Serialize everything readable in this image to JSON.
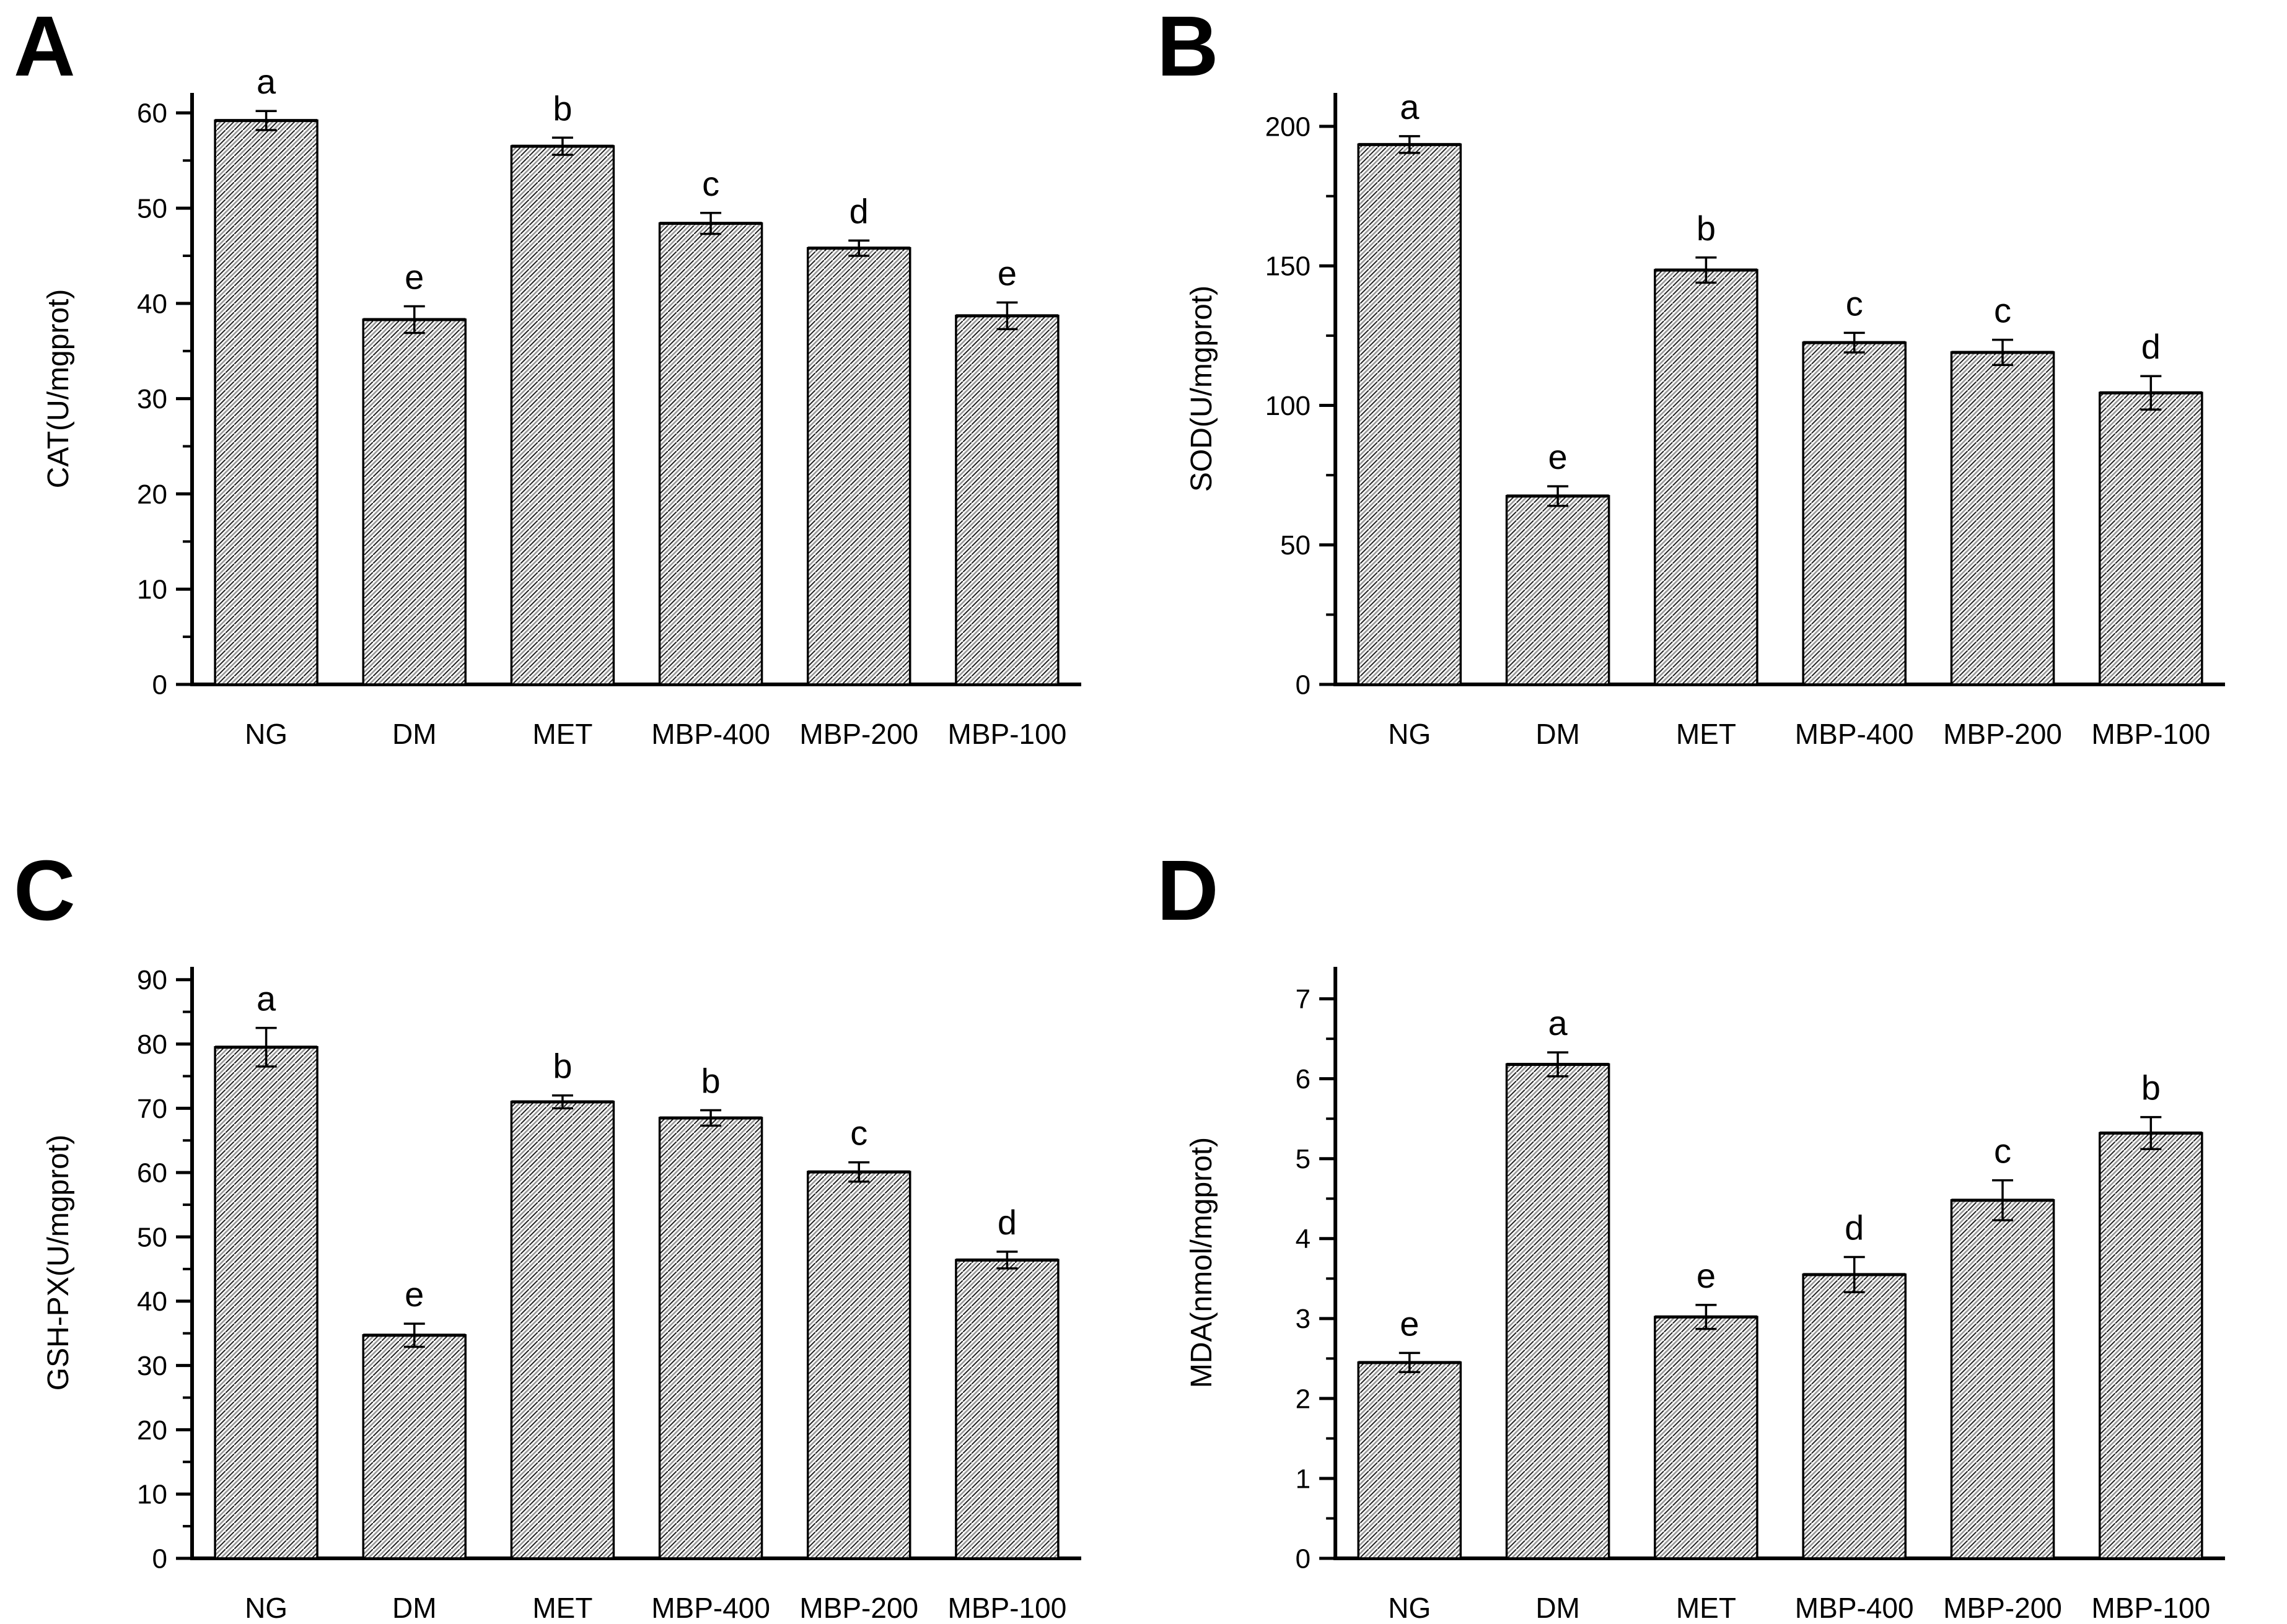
{
  "figure": {
    "background_color": "#ffffff",
    "axis_color": "#000000",
    "hatch_dark_color": "#1f1f1f",
    "hatch_light_color": "#9a9a9a",
    "bar_fill_background": "#ffffff",
    "groups": [
      "NG",
      "DM",
      "MET",
      "MBP-400",
      "MBP-200",
      "MBP-100"
    ]
  },
  "chart_data": [
    {
      "type": "bar",
      "panel_letter": "A",
      "title": "",
      "xlabel": "",
      "ylabel": "CAT(U/mgprot)",
      "categories": [
        "NG",
        "DM",
        "MET",
        "MBP-400",
        "MBP-200",
        "MBP-100"
      ],
      "values": [
        59.2,
        38.3,
        56.5,
        48.4,
        45.8,
        38.7
      ],
      "errors": [
        1.0,
        1.4,
        0.9,
        1.1,
        0.8,
        1.4
      ],
      "sig_labels": [
        "a",
        "e",
        "b",
        "c",
        "d",
        "e"
      ],
      "ylim": [
        0,
        62.1
      ],
      "ytick_major": 10,
      "ytick_minor": 5,
      "grid": "off",
      "legend": "none"
    },
    {
      "type": "bar",
      "panel_letter": "B",
      "title": "",
      "xlabel": "",
      "ylabel": "SOD(U/mgprot)",
      "categories": [
        "NG",
        "DM",
        "MET",
        "MBP-400",
        "MBP-200",
        "MBP-100"
      ],
      "values": [
        193.5,
        67.5,
        148.5,
        122.5,
        119.0,
        104.5
      ],
      "errors": [
        3.0,
        3.5,
        4.5,
        3.5,
        4.5,
        6.0
      ],
      "sig_labels": [
        "a",
        "e",
        "b",
        "c",
        "c",
        "d"
      ],
      "ylim": [
        0,
        212
      ],
      "ytick_major": 50,
      "ytick_minor": 25,
      "grid": "off",
      "legend": "none"
    },
    {
      "type": "bar",
      "panel_letter": "C",
      "title": "",
      "xlabel": "",
      "ylabel": "GSH-PX(U/mgprot)",
      "categories": [
        "NG",
        "DM",
        "MET",
        "MBP-400",
        "MBP-200",
        "MBP-100"
      ],
      "values": [
        79.5,
        34.7,
        71.0,
        68.5,
        60.1,
        46.4
      ],
      "errors": [
        3.0,
        1.8,
        1.0,
        1.2,
        1.5,
        1.3
      ],
      "sig_labels": [
        "a",
        "e",
        "b",
        "b",
        "c",
        "d"
      ],
      "ylim": [
        0,
        92
      ],
      "ytick_major": 10,
      "ytick_minor": 5,
      "grid": "off",
      "legend": "none"
    },
    {
      "type": "bar",
      "panel_letter": "D",
      "title": "",
      "xlabel": "",
      "ylabel": "MDA(nmol/mgprot)",
      "categories": [
        "NG",
        "DM",
        "MET",
        "MBP-400",
        "MBP-200",
        "MBP-100"
      ],
      "values": [
        2.45,
        6.18,
        3.02,
        3.55,
        4.48,
        5.32
      ],
      "errors": [
        0.12,
        0.15,
        0.15,
        0.22,
        0.25,
        0.2
      ],
      "sig_labels": [
        "e",
        "a",
        "e",
        "d",
        "c",
        "b"
      ],
      "ylim": [
        0,
        7.4
      ],
      "ytick_major": 1,
      "ytick_minor": 0.5,
      "grid": "off",
      "legend": "none"
    }
  ]
}
